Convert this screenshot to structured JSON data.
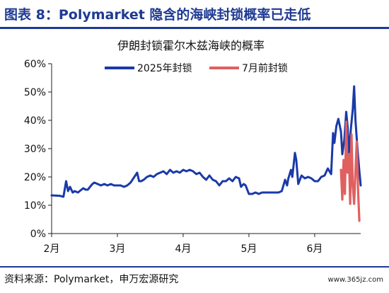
{
  "header": {
    "title": "图表 8：Polymarket 隐含的海峡封锁概率已走低"
  },
  "chart_data": {
    "type": "line",
    "title": "伊朗封锁霍尔木兹海峡的概率",
    "xlabel": "",
    "ylabel": "",
    "ylim": [
      0,
      60
    ],
    "yticks": [
      "0%",
      "10%",
      "20%",
      "30%",
      "40%",
      "50%",
      "60%"
    ],
    "xlim": [
      0,
      4.7
    ],
    "xticks": [
      {
        "pos": 0,
        "label": "2月"
      },
      {
        "pos": 1,
        "label": "3月"
      },
      {
        "pos": 2,
        "label": "4月"
      },
      {
        "pos": 3,
        "label": "5月"
      },
      {
        "pos": 4,
        "label": "6月"
      }
    ],
    "grid": false,
    "legend": "top-center",
    "series": [
      {
        "name": "2025年封锁",
        "color": "#1a3aa8",
        "x": [
          0,
          0.13,
          0.18,
          0.22,
          0.25,
          0.28,
          0.32,
          0.35,
          0.4,
          0.48,
          0.52,
          0.55,
          0.62,
          0.65,
          0.7,
          0.75,
          0.8,
          0.85,
          0.9,
          0.95,
          1.0,
          1.05,
          1.1,
          1.15,
          1.2,
          1.3,
          1.33,
          1.36,
          1.4,
          1.45,
          1.5,
          1.55,
          1.6,
          1.65,
          1.7,
          1.75,
          1.8,
          1.85,
          1.9,
          1.95,
          2.0,
          2.05,
          2.1,
          2.15,
          2.2,
          2.25,
          2.3,
          2.35,
          2.4,
          2.45,
          2.5,
          2.55,
          2.6,
          2.65,
          2.7,
          2.75,
          2.8,
          2.85,
          2.88,
          2.92,
          2.95,
          3.0,
          3.05,
          3.1,
          3.15,
          3.2,
          3.25,
          3.3,
          3.35,
          3.4,
          3.45,
          3.5,
          3.55,
          3.58,
          3.6,
          3.62,
          3.64,
          3.66,
          3.7,
          3.72,
          3.75,
          3.8,
          3.85,
          3.9,
          3.95,
          4.0,
          4.05,
          4.1,
          4.15,
          4.2,
          4.25,
          4.28,
          4.3,
          4.33,
          4.36,
          4.4,
          4.42,
          4.45,
          4.48,
          4.5,
          4.52,
          4.55,
          4.58,
          4.6,
          4.62,
          4.65,
          4.68,
          4.7
        ],
        "values": [
          13.5,
          13.3,
          13.0,
          18.5,
          15.0,
          16.5,
          14.5,
          15.0,
          14.5,
          16.0,
          15.5,
          15.5,
          17.5,
          18.0,
          17.5,
          17.0,
          17.5,
          17.0,
          17.5,
          17.0,
          17.0,
          17.0,
          16.5,
          17.0,
          18.0,
          21.5,
          18.5,
          18.5,
          19.0,
          20.0,
          20.5,
          20.0,
          21.0,
          21.5,
          22.0,
          21.0,
          22.5,
          21.5,
          22.0,
          21.5,
          22.5,
          22.0,
          22.5,
          22.0,
          21.0,
          21.5,
          20.0,
          19.0,
          20.5,
          19.0,
          18.5,
          17.0,
          18.5,
          18.5,
          19.5,
          18.5,
          20.0,
          19.5,
          16.5,
          17.5,
          17.0,
          14.0,
          14.0,
          14.5,
          14.0,
          14.5,
          14.5,
          14.5,
          14.5,
          14.5,
          14.5,
          15.0,
          19.0,
          17.0,
          19.5,
          21.0,
          22.5,
          20.0,
          28.5,
          26.0,
          17.5,
          20.5,
          19.5,
          20.0,
          19.5,
          18.5,
          18.5,
          20.0,
          20.5,
          23.0,
          21.0,
          35.5,
          32.0,
          38.0,
          40.5,
          36.0,
          28.0,
          33.0,
          43.0,
          38.0,
          28.5,
          37.0,
          44.0,
          52.0,
          40.0,
          30.0,
          22.0,
          17.0
        ]
      },
      {
        "name": "7月前封锁",
        "color": "#e06060",
        "x": [
          4.4,
          4.42,
          4.44,
          4.46,
          4.48,
          4.5,
          4.52,
          4.54,
          4.56,
          4.58,
          4.6,
          4.62,
          4.64,
          4.66,
          4.68
        ],
        "values": [
          22.5,
          12.0,
          26.0,
          14.0,
          39.5,
          21.5,
          28.0,
          10.5,
          35.0,
          17.0,
          10.5,
          22.0,
          32.5,
          15.0,
          4.5
        ]
      }
    ]
  },
  "footer": {
    "source": "资料来源：Polymarket，申万宏源研究",
    "watermark": "www.365jz.com"
  }
}
